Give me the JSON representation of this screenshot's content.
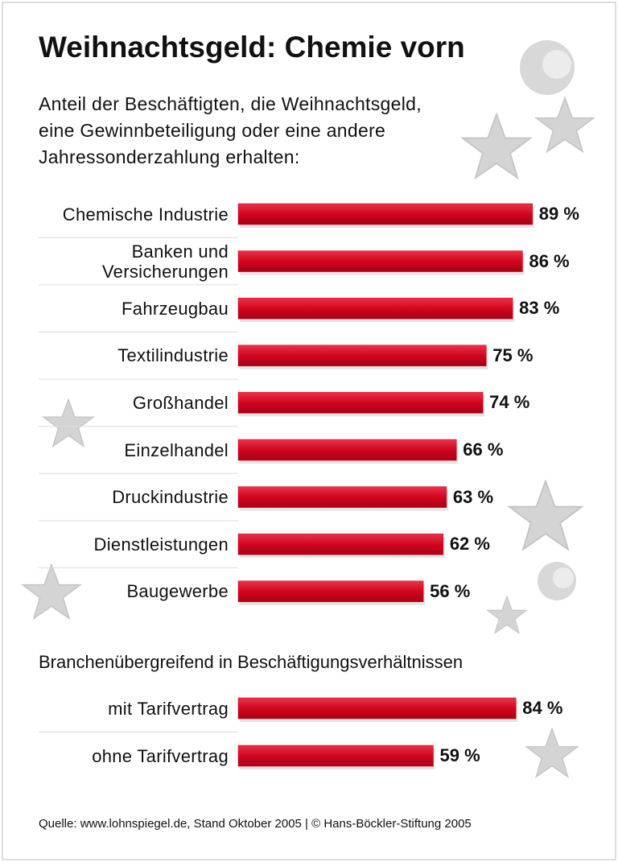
{
  "chart_data": [
    {
      "type": "bar",
      "orientation": "horizontal",
      "title": "Weihnachtsgeld: Chemie vorn",
      "subtitle": "Anteil der Beschäftigten, die Weihnachtsgeld, eine Gewinnbeteiligung oder eine andere Jahressonderzahlung erhalten:",
      "categories": [
        "Chemische Industrie",
        "Banken und Versicherungen",
        "Fahrzeugbau",
        "Textilindustrie",
        "Großhandel",
        "Einzelhandel",
        "Druckindustrie",
        "Dienstleistungen",
        "Baugewerbe"
      ],
      "values": [
        89,
        86,
        83,
        75,
        74,
        66,
        63,
        62,
        56
      ],
      "value_labels": [
        "89 %",
        "86 %",
        "83 %",
        "75 %",
        "74 %",
        "66 %",
        "63 %",
        "62 %",
        "56 %"
      ],
      "color": "#d2051e"
    },
    {
      "type": "bar",
      "orientation": "horizontal",
      "title": "Branchenübergreifend in Beschäftigungsverhältnissen",
      "categories": [
        "mit Tarifvertrag",
        "ohne Tarifvertrag"
      ],
      "values": [
        84,
        59
      ],
      "value_labels": [
        "84 %",
        "59 %"
      ],
      "color": "#d2051e"
    }
  ],
  "source": "Quelle: www.lohnspiegel.de, Stand Oktober 2005 | © Hans-Böckler-Stiftung 2005"
}
